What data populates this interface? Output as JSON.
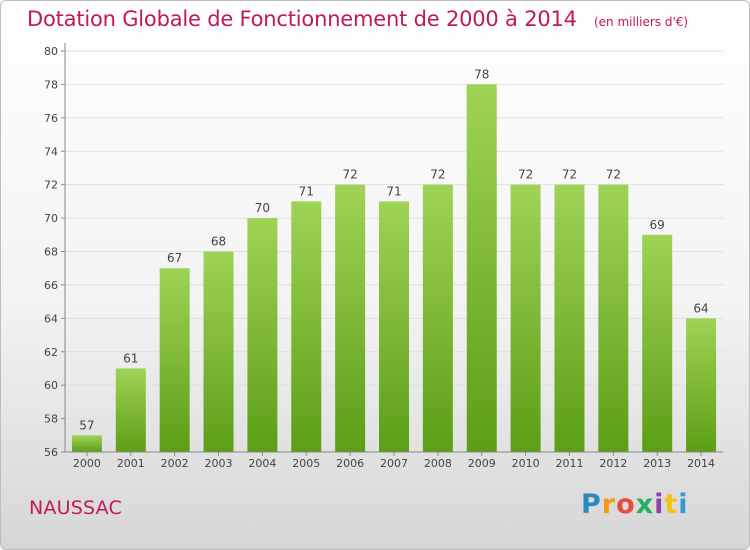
{
  "header": {
    "title": "Dotation Globale de Fonctionnement de 2000 à 2014",
    "unit": "(en milliers d'€)"
  },
  "footer": {
    "commune": "NAUSSAC",
    "logo_letters": [
      "P",
      "r",
      "o",
      "x",
      "i",
      "t",
      "i"
    ]
  },
  "colors": {
    "bar_top": "#9fd356",
    "bar_bottom": "#5c9e16",
    "title": "#c2185b"
  },
  "chart_data": {
    "type": "bar",
    "title": "Dotation Globale de Fonctionnement de 2000 à 2014",
    "subtitle": "(en milliers d'€)",
    "xlabel": "",
    "ylabel": "",
    "categories": [
      "2000",
      "2001",
      "2002",
      "2003",
      "2004",
      "2005",
      "2006",
      "2007",
      "2008",
      "2009",
      "2010",
      "2011",
      "2012",
      "2013",
      "2014"
    ],
    "values": [
      57,
      61,
      67,
      68,
      70,
      71,
      72,
      71,
      72,
      78,
      72,
      72,
      72,
      69,
      64
    ],
    "ylim": [
      56,
      80
    ],
    "yticks": [
      56,
      58,
      60,
      62,
      64,
      66,
      68,
      70,
      72,
      74,
      76,
      78,
      80
    ],
    "grid": true,
    "legend": "none"
  }
}
